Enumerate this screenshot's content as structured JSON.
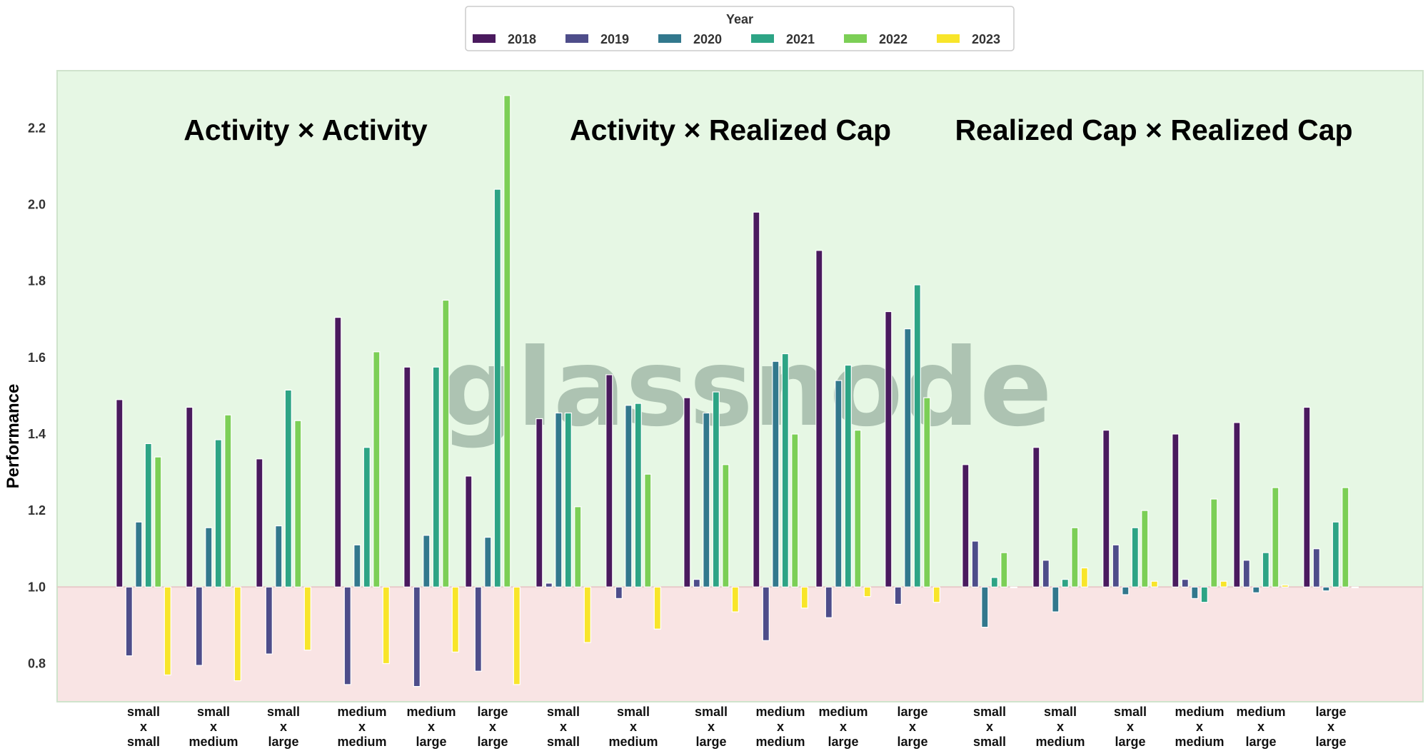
{
  "chart_data": {
    "type": "bar",
    "ylabel": "Performance",
    "ylim": [
      0.7,
      2.35
    ],
    "yticks": [
      "0.8",
      "1.0",
      "1.2",
      "1.4",
      "1.6",
      "1.8",
      "2.0",
      "2.2"
    ],
    "baseline": 1.0,
    "legend": {
      "title": "Year",
      "placement": "top-center"
    },
    "watermark": "glassnode",
    "background": {
      "above_baseline": "#e6f7e4",
      "below_baseline": "#f9e4e4"
    },
    "groups": [
      {
        "label": "Activity × Activity"
      },
      {
        "label": "Activity × Realized Cap"
      },
      {
        "label": "Realized Cap × Realized Cap"
      }
    ],
    "categories": [
      [
        "small",
        "x",
        "small"
      ],
      [
        "small",
        "x",
        "medium"
      ],
      [
        "small",
        "x",
        "large"
      ],
      [
        "medium",
        "x",
        "medium"
      ],
      [
        "medium",
        "x",
        "large"
      ],
      [
        "large",
        "x",
        "large"
      ],
      [
        "small",
        "x",
        "small"
      ],
      [
        "small",
        "x",
        "medium"
      ],
      [
        "small",
        "x",
        "large"
      ],
      [
        "medium",
        "x",
        "medium"
      ],
      [
        "medium",
        "x",
        "large"
      ],
      [
        "large",
        "x",
        "large"
      ],
      [
        "small",
        "x",
        "small"
      ],
      [
        "small",
        "x",
        "medium"
      ],
      [
        "small",
        "x",
        "large"
      ],
      [
        "medium",
        "x",
        "medium"
      ],
      [
        "medium",
        "x",
        "large"
      ],
      [
        "large",
        "x",
        "large"
      ]
    ],
    "series": [
      {
        "name": "2018",
        "color": "#4a1a5e",
        "values": [
          1.49,
          1.47,
          1.335,
          1.705,
          1.575,
          1.29,
          1.44,
          1.555,
          1.495,
          1.98,
          1.88,
          1.72,
          1.32,
          1.365,
          1.41,
          1.4,
          1.43,
          1.47
        ]
      },
      {
        "name": "2019",
        "color": "#4e4d8a",
        "values": [
          0.82,
          0.795,
          0.825,
          0.745,
          0.74,
          0.78,
          1.01,
          0.97,
          1.02,
          0.86,
          0.92,
          0.955,
          1.12,
          1.07,
          1.11,
          1.02,
          1.07,
          1.1
        ]
      },
      {
        "name": "2020",
        "color": "#32788d",
        "values": [
          1.17,
          1.155,
          1.16,
          1.11,
          1.135,
          1.13,
          1.455,
          1.475,
          1.455,
          1.59,
          1.54,
          1.675,
          0.895,
          0.935,
          0.98,
          0.97,
          0.985,
          0.99
        ]
      },
      {
        "name": "2021",
        "color": "#2da485",
        "values": [
          1.375,
          1.385,
          1.515,
          1.365,
          1.575,
          2.04,
          1.455,
          1.48,
          1.51,
          1.61,
          1.58,
          1.79,
          1.025,
          1.02,
          1.155,
          0.96,
          1.09,
          1.17
        ]
      },
      {
        "name": "2022",
        "color": "#7ccf56",
        "values": [
          1.34,
          1.45,
          1.435,
          1.615,
          1.75,
          2.285,
          1.21,
          1.295,
          1.32,
          1.4,
          1.41,
          1.495,
          1.09,
          1.155,
          1.2,
          1.23,
          1.26,
          1.26
        ]
      },
      {
        "name": "2023",
        "color": "#f8e52a",
        "values": [
          0.77,
          0.755,
          0.835,
          0.8,
          0.83,
          0.745,
          0.855,
          0.89,
          0.935,
          0.945,
          0.975,
          0.96,
          1.0,
          1.05,
          1.015,
          1.015,
          1.005,
          1.0
        ]
      }
    ]
  }
}
